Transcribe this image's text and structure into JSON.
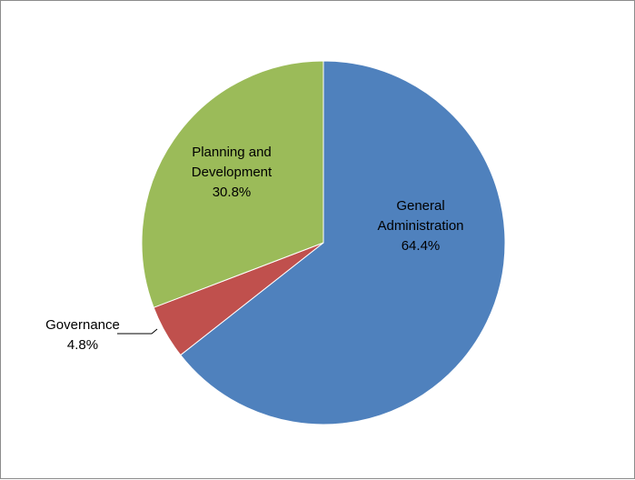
{
  "chart_data": {
    "type": "pie",
    "title": "",
    "slices": [
      {
        "name": "General Administration",
        "label_lines": [
          "General",
          "Administration"
        ],
        "value": 64.4,
        "label": "64.4%",
        "color": "#4F81BD"
      },
      {
        "name": "Governance",
        "label_lines": [
          "Governance"
        ],
        "value": 4.8,
        "label": "4.8%",
        "color": "#C0504D"
      },
      {
        "name": "Planning and Development",
        "label_lines": [
          "Planning and",
          "Development"
        ],
        "value": 30.8,
        "label": "30.8%",
        "color": "#9BBB59"
      }
    ],
    "legend": "none",
    "start_angle": "12 o'clock",
    "direction": "clockwise"
  }
}
